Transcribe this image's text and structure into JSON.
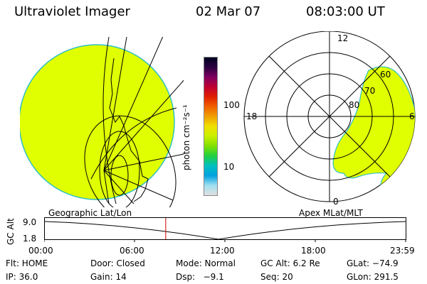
{
  "header": {
    "instrument": "Ultraviolet Imager",
    "date": "02 Mar 07",
    "time": "08:03:00 UT"
  },
  "colorbar": {
    "label": "photon cm⁻²s⁻¹",
    "ticks": [
      "100",
      "10"
    ],
    "colors": [
      "#000020",
      "#2a0040",
      "#800060",
      "#c00030",
      "#e02000",
      "#f06000",
      "#f0a000",
      "#f0e000",
      "#c8f000",
      "#80e000",
      "#20d040",
      "#00c0c0",
      "#00a0e0",
      "#a0e0f0",
      "#e0e0e0"
    ]
  },
  "geo_panel": {
    "label": "Geographic Lat/Lon",
    "fill_color": "#e0ff00"
  },
  "polar_panel": {
    "label": "Apex MLat/MLT",
    "mlt_labels": {
      "top": "12",
      "left": "18",
      "right": "6",
      "bottom": "0"
    },
    "lat_labels": [
      "60",
      "70",
      "80"
    ],
    "fill_color": "#e0ff00"
  },
  "altitude_plot": {
    "ylabel": "GC Alt",
    "yticks": [
      "9.0",
      "1.8"
    ],
    "xticks": [
      "00:00",
      "06:00",
      "12:00",
      "18:00",
      "23:59"
    ],
    "current_time_fraction": 0.335
  },
  "info": {
    "row1": {
      "flt": "Flt: HOME",
      "door": "Door: Closed",
      "mode": "Mode: Normal",
      "gcalt": "GC Alt: 6.2 Re",
      "glat": "GLat: −74.9"
    },
    "row2": {
      "ip": "IP: 36.0",
      "gain": "Gain: 14",
      "dsp": "Dsp:   −9.1",
      "seq": "Seq: 20",
      "glon": "GLon: 291.5"
    }
  }
}
